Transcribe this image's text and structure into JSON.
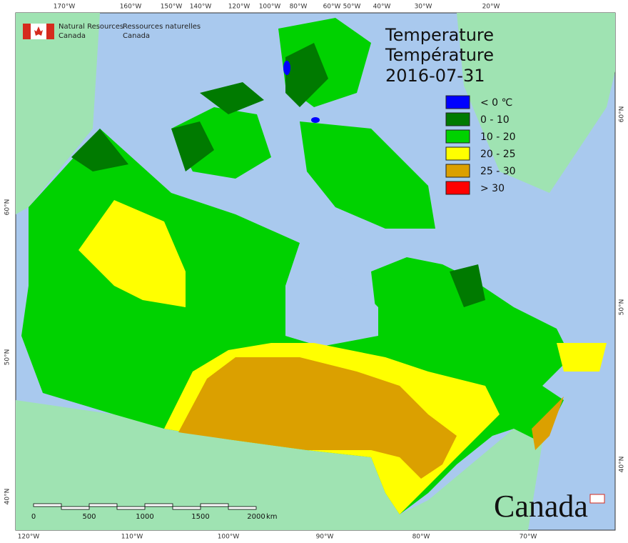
{
  "header": {
    "org_en": [
      "Natural Resources",
      "Canada"
    ],
    "org_fr": [
      "Ressources naturelles",
      "Canada"
    ]
  },
  "title": {
    "en": "Temperature",
    "fr": "Température",
    "date": "2016-07-31"
  },
  "legend": [
    {
      "label": "< 0 ℃",
      "color": "#0000ff"
    },
    {
      "label": "0 - 10",
      "color": "#007a00"
    },
    {
      "label": "10 - 20",
      "color": "#00d200"
    },
    {
      "label": "20 - 25",
      "color": "#ffff00"
    },
    {
      "label": "25 - 30",
      "color": "#dba000"
    },
    {
      "label": "> 30",
      "color": "#ff0000"
    }
  ],
  "graticule": {
    "top": [
      "170°W",
      "160°W",
      "150°W",
      "140°W",
      "120°W",
      "100°W",
      "80°W",
      "60°W",
      "50°W",
      "40°W",
      "30°W",
      "20°W"
    ],
    "bottom": [
      "120°W",
      "110°W",
      "100°W",
      "90°W",
      "80°W",
      "70°W"
    ],
    "left": [
      "60°N",
      "50°N",
      "40°N"
    ],
    "right": [
      "60°N",
      "50°N",
      "40°N"
    ]
  },
  "scale_bar": {
    "labels": [
      "0",
      "500",
      "1000",
      "1500",
      "2000"
    ],
    "unit": "km"
  },
  "wordmark": "Canada"
}
